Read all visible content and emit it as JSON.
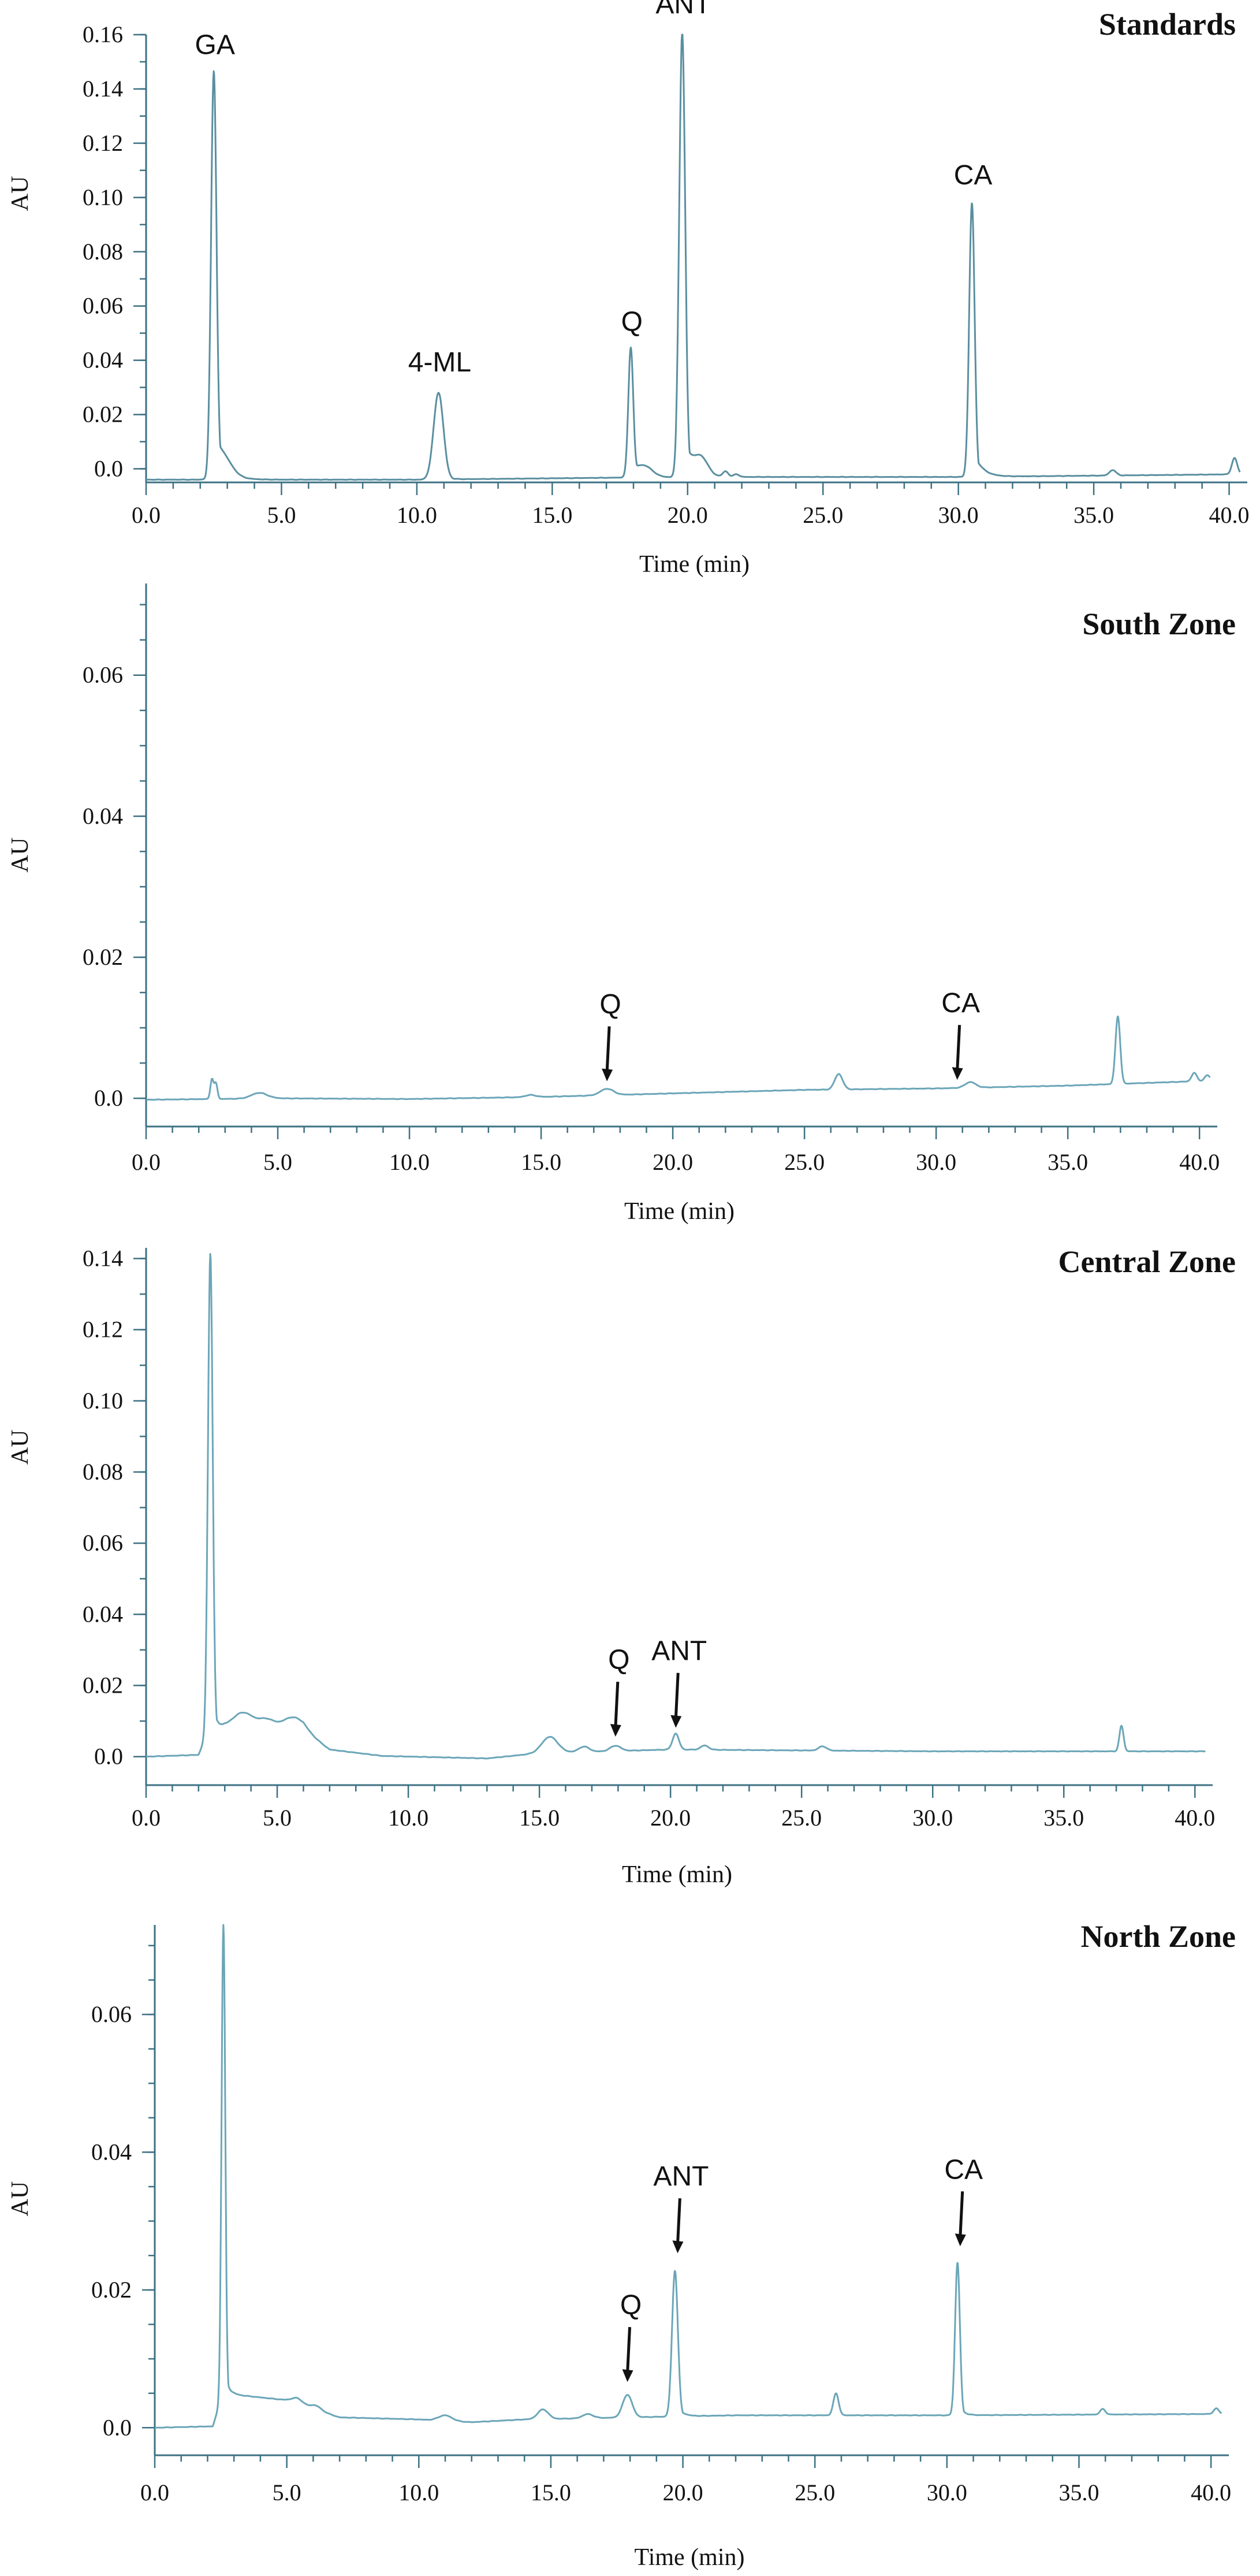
{
  "chart_data": [
    {
      "type": "line",
      "title": "Standards",
      "xlabel": "Time (min)",
      "ylabel": "AU",
      "xlim": [
        0,
        40.5
      ],
      "ylim": [
        -0.005,
        0.16
      ],
      "x_ticks": [
        0,
        5,
        10,
        15,
        20,
        25,
        30,
        35,
        40
      ],
      "x_tick_labels": [
        "0.0",
        "5.0",
        "10.0",
        "15.0",
        "20.0",
        "25.0",
        "30.0",
        "35.0",
        "40.0"
      ],
      "y_ticks": [
        0,
        0.02,
        0.04,
        0.06,
        0.08,
        0.1,
        0.12,
        0.14,
        0.16
      ],
      "y_tick_labels": [
        "0.0",
        "0.02",
        "0.04",
        "0.06",
        "0.08",
        "0.10",
        "0.12",
        "0.14",
        "0.16"
      ],
      "line_color": "#5a8fa0",
      "baseline": [
        [
          0,
          -0.004
        ],
        [
          10,
          -0.004
        ],
        [
          20,
          -0.003
        ],
        [
          30,
          -0.003
        ],
        [
          40.5,
          -0.002
        ]
      ],
      "peaks": [
        {
          "t": 2.5,
          "h": 0.149,
          "w": 0.1,
          "tail": 0.35
        },
        {
          "t": 2.9,
          "h": 0.004,
          "w": 0.3
        },
        {
          "t": 10.8,
          "h": 0.032,
          "w": 0.18,
          "tail": 0.2
        },
        {
          "t": 17.9,
          "h": 0.047,
          "w": 0.09,
          "tail": 0.2
        },
        {
          "t": 18.4,
          "h": 0.004,
          "w": 0.3
        },
        {
          "t": 19.8,
          "h": 0.164,
          "w": 0.11,
          "tail": 0.3
        },
        {
          "t": 20.5,
          "h": 0.006,
          "w": 0.25
        },
        {
          "t": 21.4,
          "h": 0.002,
          "w": 0.1
        },
        {
          "t": 21.8,
          "h": 0.001,
          "w": 0.1
        },
        {
          "t": 30.5,
          "h": 0.101,
          "w": 0.1,
          "tail": 0.3
        },
        {
          "t": 35.7,
          "h": 0.002,
          "w": 0.12
        },
        {
          "t": 40.2,
          "h": 0.006,
          "w": 0.1
        }
      ],
      "annotations": [
        {
          "label": "GA",
          "x": 2.5,
          "y": 0.149,
          "arrow": false
        },
        {
          "label": "4-ML",
          "x": 10.8,
          "y": 0.032,
          "arrow": false
        },
        {
          "label": "Q",
          "x": 17.9,
          "y": 0.047,
          "arrow": false
        },
        {
          "label": "ANT",
          "x": 19.8,
          "y": 0.164,
          "arrow": false
        },
        {
          "label": "CA",
          "x": 30.5,
          "y": 0.101,
          "arrow": false
        }
      ]
    },
    {
      "type": "line",
      "title": "South Zone",
      "xlabel": "Time (min)",
      "ylabel": "AU",
      "xlim": [
        0,
        40.5
      ],
      "ylim": [
        -0.004,
        0.073
      ],
      "x_ticks": [
        0,
        5,
        10,
        15,
        20,
        25,
        30,
        35,
        40
      ],
      "x_tick_labels": [
        "0.0",
        "5.0",
        "10.0",
        "15.0",
        "20.0",
        "25.0",
        "30.0",
        "35.0",
        "40.0"
      ],
      "y_ticks": [
        0,
        0.02,
        0.04,
        0.06
      ],
      "y_tick_labels": [
        "0.0",
        "0.02",
        "0.04",
        "0.06"
      ],
      "y_minor_step": 0.005,
      "line_color": "#6ba6b8",
      "baseline": [
        [
          0,
          -0.0002
        ],
        [
          5,
          0.0
        ],
        [
          10,
          -0.0001
        ],
        [
          15,
          0.0002
        ],
        [
          20,
          0.0007
        ],
        [
          25,
          0.0012
        ],
        [
          30,
          0.0014
        ],
        [
          35,
          0.0018
        ],
        [
          40.5,
          0.0025
        ]
      ],
      "peaks": [
        {
          "t": 2.5,
          "h": 0.0028,
          "w": 0.06
        },
        {
          "t": 2.65,
          "h": 0.0022,
          "w": 0.06
        },
        {
          "t": 4.3,
          "h": 0.0008,
          "w": 0.3
        },
        {
          "t": 14.6,
          "h": 0.0003,
          "w": 0.2
        },
        {
          "t": 17.5,
          "h": 0.0009,
          "w": 0.25
        },
        {
          "t": 26.3,
          "h": 0.0022,
          "w": 0.15
        },
        {
          "t": 31.3,
          "h": 0.0008,
          "w": 0.2
        },
        {
          "t": 36.9,
          "h": 0.0096,
          "w": 0.09
        },
        {
          "t": 39.8,
          "h": 0.0012,
          "w": 0.1
        },
        {
          "t": 40.3,
          "h": 0.0008,
          "w": 0.1
        }
      ],
      "annotations": [
        {
          "label": "Q",
          "x": 17.5,
          "y": 0.0016,
          "arrow": true
        },
        {
          "label": "CA",
          "x": 30.8,
          "y": 0.0018,
          "arrow": true
        }
      ]
    },
    {
      "type": "line",
      "title": "Central Zone",
      "xlabel": "Time (min)",
      "ylabel": "AU",
      "xlim": [
        0,
        40.5
      ],
      "ylim": [
        -0.008,
        0.143
      ],
      "x_ticks": [
        0,
        5,
        10,
        15,
        20,
        25,
        30,
        35,
        40
      ],
      "x_tick_labels": [
        "0.0",
        "5.0",
        "10.0",
        "15.0",
        "20.0",
        "25.0",
        "30.0",
        "35.0",
        "40.0"
      ],
      "y_ticks": [
        0,
        0.02,
        0.04,
        0.06,
        0.08,
        0.1,
        0.12,
        0.14
      ],
      "y_tick_labels": [
        "0.0",
        "0.02",
        "0.04",
        "0.06",
        "0.08",
        "0.10",
        "0.12",
        "0.14"
      ],
      "line_color": "#6ba6b8",
      "baseline": [
        [
          0,
          0.0
        ],
        [
          2,
          0.0005
        ],
        [
          2.3,
          0.006
        ],
        [
          3,
          0.008
        ],
        [
          6,
          0.0075
        ],
        [
          7,
          0.002
        ],
        [
          9,
          0.0002
        ],
        [
          13,
          -0.0005
        ],
        [
          15,
          0.001
        ],
        [
          20,
          0.002
        ],
        [
          30,
          0.0015
        ],
        [
          40.2,
          0.0015
        ]
      ],
      "peaks": [
        {
          "t": 2.45,
          "h": 0.135,
          "w": 0.09,
          "tail": 0.15
        },
        {
          "t": 3.7,
          "h": 0.0045,
          "w": 0.4
        },
        {
          "t": 4.6,
          "h": 0.0025,
          "w": 0.3
        },
        {
          "t": 5.6,
          "h": 0.0035,
          "w": 0.4
        },
        {
          "t": 15.4,
          "h": 0.0045,
          "w": 0.3
        },
        {
          "t": 16.7,
          "h": 0.0015,
          "w": 0.2
        },
        {
          "t": 17.9,
          "h": 0.0015,
          "w": 0.2
        },
        {
          "t": 20.2,
          "h": 0.0045,
          "w": 0.12
        },
        {
          "t": 21.3,
          "h": 0.0012,
          "w": 0.15
        },
        {
          "t": 25.8,
          "h": 0.0012,
          "w": 0.15
        },
        {
          "t": 37.2,
          "h": 0.0072,
          "w": 0.08
        }
      ],
      "annotations": [
        {
          "label": "Q",
          "x": 17.9,
          "y": 0.004,
          "arrow": true
        },
        {
          "label": "ANT",
          "x": 20.2,
          "y": 0.0065,
          "arrow": true
        }
      ]
    },
    {
      "type": "line",
      "title": "North Zone",
      "xlabel": "Time (min)",
      "ylabel": "AU",
      "xlim": [
        0,
        40.5
      ],
      "ylim": [
        -0.004,
        0.073
      ],
      "x_ticks": [
        0,
        5,
        10,
        15,
        20,
        25,
        30,
        35,
        40
      ],
      "x_tick_labels": [
        "0.0",
        "5.0",
        "10.0",
        "15.0",
        "20.0",
        "25.0",
        "30.0",
        "35.0",
        "40.0"
      ],
      "y_ticks": [
        0,
        0.02,
        0.04,
        0.06
      ],
      "y_tick_labels": [
        "0.0",
        "0.02",
        "0.04",
        "0.06"
      ],
      "y_minor_step": 0.005,
      "line_color": "#6ba6b8",
      "baseline": [
        [
          0,
          0.0
        ],
        [
          2.2,
          0.0002
        ],
        [
          2.5,
          0.004
        ],
        [
          3,
          0.0048
        ],
        [
          5,
          0.004
        ],
        [
          7,
          0.0015
        ],
        [
          10,
          0.0012
        ],
        [
          12,
          0.0008
        ],
        [
          14,
          0.0012
        ],
        [
          18,
          0.0015
        ],
        [
          22,
          0.0018
        ],
        [
          30,
          0.0018
        ],
        [
          40.5,
          0.002
        ]
      ],
      "peaks": [
        {
          "t": 2.6,
          "h": 0.069,
          "w": 0.07,
          "tail": 0.12
        },
        {
          "t": 5.4,
          "h": 0.0008,
          "w": 0.2
        },
        {
          "t": 6.1,
          "h": 0.0006,
          "w": 0.2
        },
        {
          "t": 11.0,
          "h": 0.0008,
          "w": 0.25
        },
        {
          "t": 14.7,
          "h": 0.0014,
          "w": 0.2
        },
        {
          "t": 16.4,
          "h": 0.0006,
          "w": 0.2
        },
        {
          "t": 17.9,
          "h": 0.0033,
          "w": 0.18
        },
        {
          "t": 19.7,
          "h": 0.0212,
          "w": 0.11,
          "tail": 0.2
        },
        {
          "t": 25.8,
          "h": 0.0032,
          "w": 0.1
        },
        {
          "t": 30.4,
          "h": 0.0222,
          "w": 0.09,
          "tail": 0.15
        },
        {
          "t": 35.9,
          "h": 0.0008,
          "w": 0.1
        },
        {
          "t": 40.2,
          "h": 0.0008,
          "w": 0.1
        }
      ],
      "annotations": [
        {
          "label": "Q",
          "x": 17.9,
          "y": 0.0058,
          "arrow": true
        },
        {
          "label": "ANT",
          "x": 19.8,
          "y": 0.0245,
          "arrow": true
        },
        {
          "label": "CA",
          "x": 30.5,
          "y": 0.0255,
          "arrow": true
        }
      ]
    }
  ]
}
